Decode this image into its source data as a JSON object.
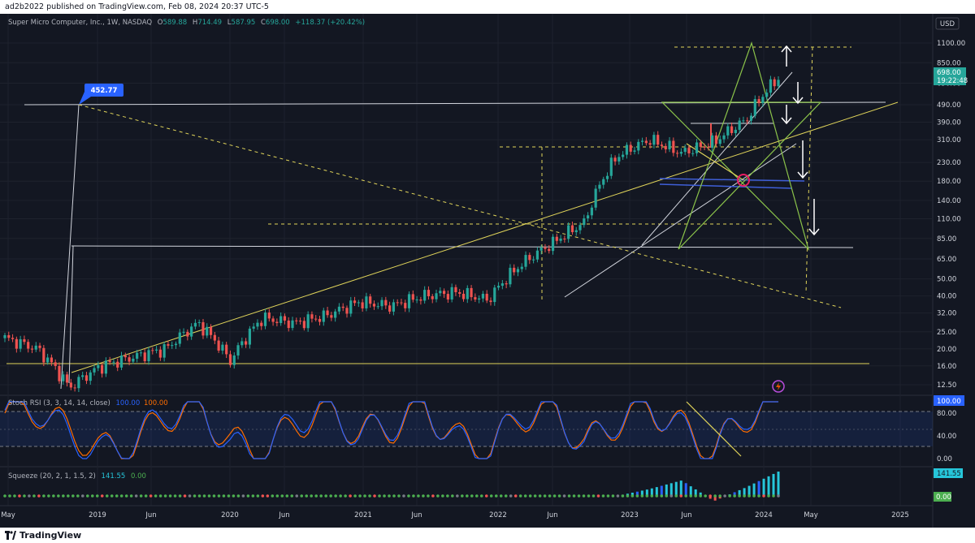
{
  "header": {
    "publisher_line": "ad2b2022 published on TradingView.com, Feb 08, 2024 20:37 UTC-5"
  },
  "symbol": {
    "name": "Super Micro Computer, Inc., 1W, NASDAQ",
    "o_label": "O",
    "o": "589.88",
    "h_label": "H",
    "h": "714.49",
    "l_label": "L",
    "l": "587.95",
    "c_label": "C",
    "c": "698.00",
    "change": "+118.37 (+20.42%)"
  },
  "currency": "USD",
  "price_axis": [
    "1100.00",
    "850.00",
    "650.00",
    "490.00",
    "390.00",
    "310.00",
    "230.00",
    "180.00",
    "140.00",
    "110.00",
    "85.00",
    "65.00",
    "50.00",
    "40.00",
    "32.00",
    "25.00",
    "20.00",
    "16.00",
    "12.50"
  ],
  "last_price": {
    "value": "698.00",
    "countdown": "19:22:48"
  },
  "callout": "452.77",
  "stoch_rsi": {
    "title": "Stoch RSI (3, 3, 14, 14, close)",
    "k": "100.00",
    "d": "100.00",
    "axis": [
      "80.00",
      "40.00",
      "0.00"
    ],
    "badge": "100.00"
  },
  "squeeze": {
    "title": "Squeeze (20, 2, 1, 1.5, 2)",
    "v1": "141.55",
    "v2": "0.00",
    "badge1": "141.55",
    "badge2": "0.00"
  },
  "time_axis": [
    "May",
    "2019",
    "Jun",
    "2020",
    "Jun",
    "2021",
    "Jun",
    "2022",
    "Jun",
    "2023",
    "Jun",
    "2024",
    "May",
    "2025"
  ],
  "footer": {
    "brand": "TradingView"
  },
  "colors": {
    "background": "#131722",
    "up": "#26a69a",
    "down": "#ef5350",
    "k_line": "#2962ff",
    "d_line": "#ff6d00",
    "trend_yellow": "#e0d45a",
    "star_green": "#8bc34a",
    "blue_lines": "#3f5fd8"
  },
  "chart_data": [
    {
      "type": "candlestick",
      "title": "Super Micro Computer, Inc., 1W, NASDAQ",
      "scale": "log",
      "ylim": [
        11,
        1250
      ],
      "x": [
        "2018-05",
        "2018-08",
        "2018-11",
        "2019-01",
        "2019-06",
        "2019-10",
        "2020-01",
        "2020-03",
        "2020-06",
        "2020-10",
        "2021-01",
        "2021-06",
        "2021-10",
        "2022-01",
        "2022-05",
        "2022-06",
        "2022-09",
        "2022-12",
        "2023-03",
        "2023-05",
        "2023-06",
        "2023-09",
        "2023-12",
        "2024-01",
        "2024-02"
      ],
      "close": [
        23,
        20,
        12,
        16,
        18,
        20,
        28,
        17,
        30,
        28,
        31,
        37,
        35,
        40,
        42,
        38,
        60,
        80,
        105,
        250,
        310,
        260,
        300,
        400,
        698
      ],
      "annotations": {
        "callout_price": 452.77,
        "last_price": 698.0
      }
    },
    {
      "type": "line",
      "title": "Stoch RSI (3, 3, 14, 14, close)",
      "ylim": [
        0,
        100
      ],
      "series": [
        {
          "name": "K",
          "values": [
            85,
            90,
            40,
            10,
            30,
            80,
            95,
            20,
            5,
            70,
            90,
            40,
            60,
            95,
            30,
            10,
            80,
            90,
            20,
            70,
            95,
            50,
            10,
            80,
            100
          ]
        },
        {
          "name": "D",
          "values": [
            80,
            85,
            50,
            15,
            25,
            75,
            90,
            30,
            10,
            60,
            85,
            45,
            55,
            90,
            35,
            15,
            75,
            85,
            25,
            65,
            90,
            55,
            15,
            75,
            100
          ]
        }
      ]
    },
    {
      "type": "bar",
      "title": "Squeeze (20, 2, 1, 1.5, 2)",
      "values": [
        0,
        0,
        0,
        0,
        0,
        0,
        0,
        0,
        0,
        0,
        0,
        0,
        0,
        0,
        0,
        0,
        0,
        0,
        0,
        0,
        40,
        90,
        -30,
        50,
        141.55
      ]
    }
  ]
}
